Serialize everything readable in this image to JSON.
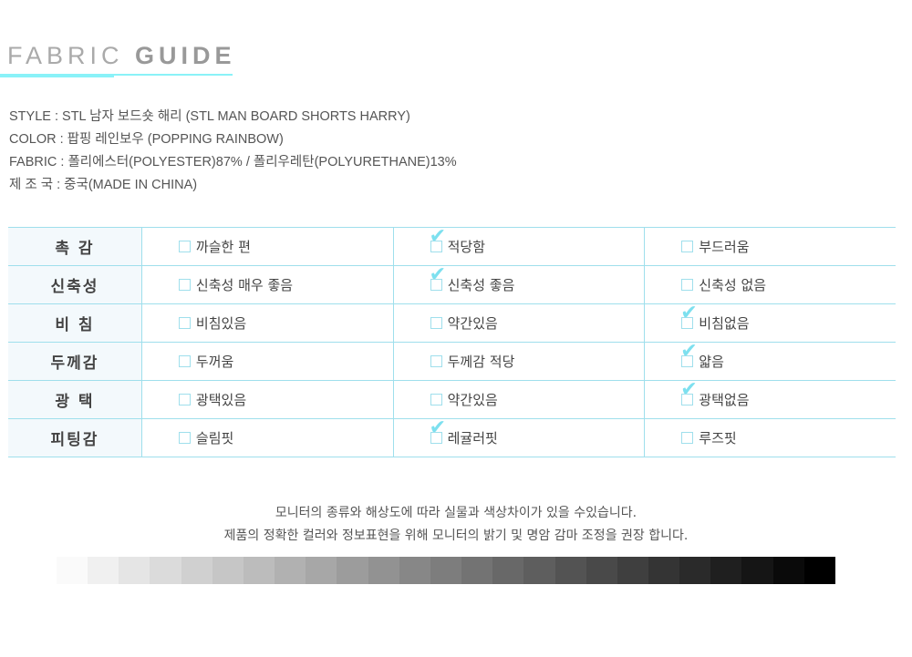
{
  "title": {
    "light": "FABRIC",
    "bold": "GUIDE"
  },
  "info": [
    "STYLE : STL 남자 보드숏 해리 (STL MAN BOARD SHORTS HARRY)",
    "COLOR : 팝핑 레인보우 (POPPING RAINBOW)",
    "FABRIC : 폴리에스터(POLYESTER)87% / 폴리우레탄(POLYURETHANE)13%",
    "제 조 국 : 중국(MADE IN CHINA)"
  ],
  "rows": [
    {
      "label": "촉 감",
      "options": [
        "까슬한 편",
        "적당함",
        "부드러움"
      ],
      "checked": 1
    },
    {
      "label": "신축성",
      "options": [
        "신축성 매우 좋음",
        "신축성 좋음",
        "신축성 없음"
      ],
      "checked": 1
    },
    {
      "label": "비 침",
      "options": [
        "비침있음",
        "약간있음",
        "비침없음"
      ],
      "checked": 2
    },
    {
      "label": "두께감",
      "options": [
        "두꺼움",
        "두께감 적당",
        "얇음"
      ],
      "checked": 2
    },
    {
      "label": "광 택",
      "options": [
        "광택있음",
        "약간있음",
        "광택없음"
      ],
      "checked": 2
    },
    {
      "label": "피팅감",
      "options": [
        "슬림핏",
        "레귤러핏",
        "루즈핏"
      ],
      "checked": 1
    }
  ],
  "notes": [
    "모니터의 종류와 해상도에 따라 실물과 색상차이가 있을 수있습니다.",
    "제품의 정확한 컬러와 정보표현을 위해 모니터의 밝기 및 명암 감마 조정을 권장 합니다."
  ],
  "colors": {
    "accent": "#8af2f8",
    "border": "#9fdfec",
    "check": "#7de0ef"
  }
}
